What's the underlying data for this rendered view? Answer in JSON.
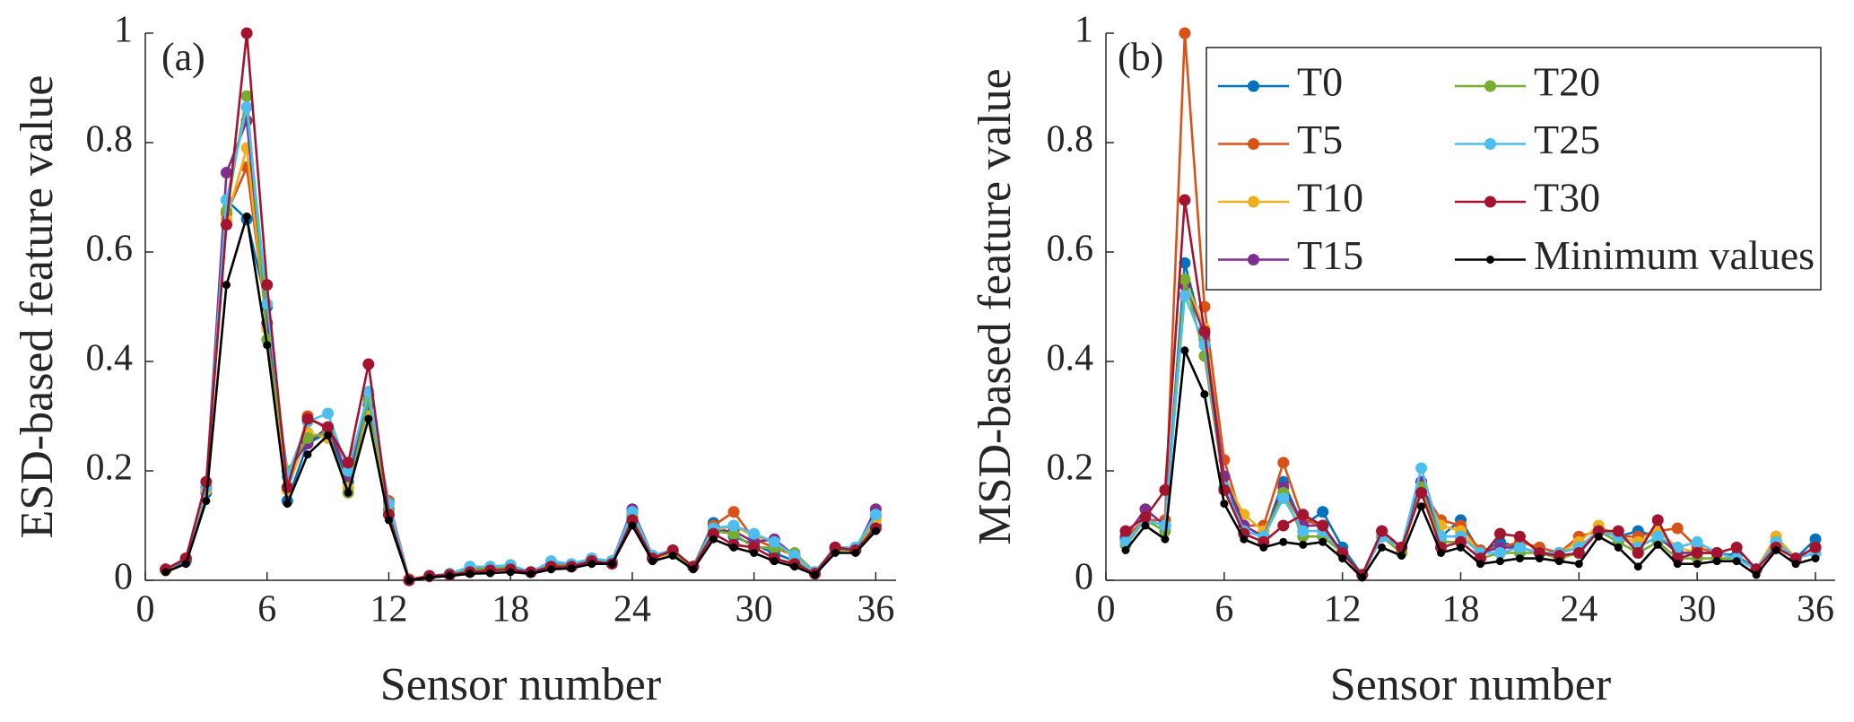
{
  "chart_data": [
    {
      "type": "line",
      "annotation": "(a)",
      "xlabel": "Sensor number",
      "ylabel": "ESD-based feature value",
      "x": [
        1,
        2,
        3,
        4,
        5,
        6,
        7,
        8,
        9,
        10,
        11,
        12,
        13,
        14,
        15,
        16,
        17,
        18,
        19,
        20,
        21,
        22,
        23,
        24,
        25,
        26,
        27,
        28,
        29,
        30,
        31,
        32,
        33,
        34,
        35,
        36
      ],
      "xlim": [
        0,
        37
      ],
      "ylim": [
        0,
        1
      ],
      "xticks": [
        0,
        6,
        12,
        18,
        24,
        30,
        36
      ],
      "yticks": [
        0,
        0.2,
        0.4,
        0.6,
        0.8,
        1
      ],
      "series": [
        {
          "color": "#0072BD",
          "values": [
            0.018,
            0.035,
            0.16,
            0.695,
            0.66,
            0.5,
            0.145,
            0.25,
            0.27,
            0.18,
            0.32,
            0.13,
            0.0,
            0.007,
            0.01,
            0.018,
            0.02,
            0.022,
            0.015,
            0.028,
            0.025,
            0.035,
            0.035,
            0.115,
            0.04,
            0.05,
            0.025,
            0.105,
            0.08,
            0.065,
            0.05,
            0.035,
            0.012,
            0.055,
            0.055,
            0.1
          ]
        },
        {
          "color": "#D95319",
          "values": [
            0.02,
            0.04,
            0.17,
            0.67,
            0.755,
            0.47,
            0.17,
            0.3,
            0.275,
            0.21,
            0.33,
            0.145,
            0.002,
            0.008,
            0.012,
            0.02,
            0.022,
            0.025,
            0.015,
            0.03,
            0.028,
            0.04,
            0.035,
            0.125,
            0.045,
            0.055,
            0.025,
            0.1,
            0.125,
            0.075,
            0.06,
            0.045,
            0.015,
            0.06,
            0.06,
            0.115
          ]
        },
        {
          "color": "#EDB120",
          "values": [
            0.018,
            0.04,
            0.165,
            0.66,
            0.79,
            0.46,
            0.165,
            0.27,
            0.26,
            0.17,
            0.3,
            0.12,
            0.0,
            0.007,
            0.01,
            0.02,
            0.02,
            0.025,
            0.015,
            0.03,
            0.025,
            0.035,
            0.035,
            0.12,
            0.04,
            0.05,
            0.025,
            0.09,
            0.1,
            0.08,
            0.07,
            0.04,
            0.015,
            0.055,
            0.055,
            0.11
          ]
        },
        {
          "color": "#7E2F8E",
          "values": [
            0.02,
            0.04,
            0.17,
            0.745,
            0.84,
            0.47,
            0.2,
            0.25,
            0.28,
            0.19,
            0.34,
            0.13,
            0.0,
            0.008,
            0.01,
            0.02,
            0.02,
            0.025,
            0.015,
            0.03,
            0.028,
            0.035,
            0.035,
            0.13,
            0.045,
            0.05,
            0.025,
            0.09,
            0.09,
            0.07,
            0.075,
            0.045,
            0.015,
            0.06,
            0.055,
            0.13
          ]
        },
        {
          "color": "#77AC30",
          "values": [
            0.02,
            0.04,
            0.17,
            0.675,
            0.885,
            0.44,
            0.2,
            0.26,
            0.27,
            0.16,
            0.33,
            0.13,
            0.0,
            0.008,
            0.01,
            0.02,
            0.02,
            0.025,
            0.015,
            0.03,
            0.025,
            0.035,
            0.035,
            0.12,
            0.045,
            0.05,
            0.025,
            0.09,
            0.085,
            0.06,
            0.06,
            0.05,
            0.015,
            0.055,
            0.055,
            0.12
          ]
        },
        {
          "color": "#4DBEEE",
          "values": [
            0.02,
            0.04,
            0.17,
            0.695,
            0.865,
            0.505,
            0.19,
            0.29,
            0.305,
            0.2,
            0.345,
            0.14,
            0.0,
            0.008,
            0.012,
            0.025,
            0.025,
            0.028,
            0.015,
            0.035,
            0.03,
            0.04,
            0.035,
            0.125,
            0.045,
            0.055,
            0.025,
            0.095,
            0.1,
            0.085,
            0.07,
            0.045,
            0.015,
            0.06,
            0.06,
            0.12
          ]
        },
        {
          "color": "#A2142F",
          "values": [
            0.02,
            0.04,
            0.18,
            0.65,
            1.0,
            0.54,
            0.17,
            0.295,
            0.28,
            0.215,
            0.395,
            0.12,
            0.0,
            0.008,
            0.01,
            0.015,
            0.018,
            0.02,
            0.015,
            0.025,
            0.025,
            0.035,
            0.03,
            0.11,
            0.04,
            0.055,
            0.025,
            0.085,
            0.065,
            0.06,
            0.04,
            0.03,
            0.012,
            0.06,
            0.055,
            0.095
          ]
        },
        {
          "color": "#000000",
          "values": [
            0.015,
            0.03,
            0.145,
            0.54,
            0.665,
            0.43,
            0.14,
            0.23,
            0.265,
            0.16,
            0.295,
            0.11,
            0.0,
            0.005,
            0.008,
            0.012,
            0.013,
            0.015,
            0.012,
            0.02,
            0.022,
            0.03,
            0.03,
            0.1,
            0.035,
            0.045,
            0.02,
            0.075,
            0.06,
            0.05,
            0.035,
            0.025,
            0.01,
            0.05,
            0.05,
            0.09
          ]
        }
      ]
    },
    {
      "type": "line",
      "annotation": "(b)",
      "xlabel": "Sensor number",
      "ylabel": "MSD-based feature value",
      "x": [
        1,
        2,
        3,
        4,
        5,
        6,
        7,
        8,
        9,
        10,
        11,
        12,
        13,
        14,
        15,
        16,
        17,
        18,
        19,
        20,
        21,
        22,
        23,
        24,
        25,
        26,
        27,
        28,
        29,
        30,
        31,
        32,
        33,
        34,
        35,
        36
      ],
      "xlim": [
        0,
        37
      ],
      "ylim": [
        0,
        1
      ],
      "xticks": [
        0,
        6,
        12,
        18,
        24,
        30,
        36
      ],
      "yticks": [
        0,
        0.2,
        0.4,
        0.6,
        0.8,
        1
      ],
      "legend": "northeast",
      "series": [
        {
          "name": "T0",
          "color": "#0072BD",
          "values": [
            0.075,
            0.11,
            0.1,
            0.58,
            0.44,
            0.19,
            0.09,
            0.08,
            0.18,
            0.1,
            0.125,
            0.06,
            0.01,
            0.08,
            0.06,
            0.18,
            0.08,
            0.11,
            0.05,
            0.07,
            0.06,
            0.05,
            0.05,
            0.06,
            0.09,
            0.08,
            0.09,
            0.08,
            0.05,
            0.05,
            0.05,
            0.045,
            0.02,
            0.07,
            0.04,
            0.075
          ]
        },
        {
          "name": "T5",
          "color": "#D95319",
          "values": [
            0.08,
            0.11,
            0.11,
            1.0,
            0.5,
            0.22,
            0.1,
            0.1,
            0.215,
            0.11,
            0.1,
            0.05,
            0.01,
            0.08,
            0.06,
            0.17,
            0.11,
            0.1,
            0.055,
            0.06,
            0.07,
            0.06,
            0.05,
            0.08,
            0.09,
            0.08,
            0.08,
            0.09,
            0.095,
            0.06,
            0.05,
            0.04,
            0.02,
            0.08,
            0.04,
            0.06
          ]
        },
        {
          "name": "T10",
          "color": "#EDB120",
          "values": [
            0.07,
            0.11,
            0.1,
            0.55,
            0.46,
            0.19,
            0.12,
            0.09,
            0.16,
            0.1,
            0.1,
            0.05,
            0.01,
            0.08,
            0.06,
            0.17,
            0.1,
            0.09,
            0.05,
            0.06,
            0.06,
            0.05,
            0.05,
            0.07,
            0.1,
            0.08,
            0.07,
            0.09,
            0.06,
            0.05,
            0.05,
            0.04,
            0.02,
            0.08,
            0.04,
            0.06
          ]
        },
        {
          "name": "T15",
          "color": "#7E2F8E",
          "values": [
            0.08,
            0.13,
            0.1,
            0.54,
            0.45,
            0.19,
            0.1,
            0.08,
            0.17,
            0.1,
            0.1,
            0.05,
            0.01,
            0.09,
            0.06,
            0.18,
            0.08,
            0.08,
            0.05,
            0.06,
            0.06,
            0.05,
            0.05,
            0.06,
            0.09,
            0.08,
            0.06,
            0.08,
            0.05,
            0.05,
            0.05,
            0.04,
            0.02,
            0.07,
            0.04,
            0.06
          ]
        },
        {
          "name": "T20",
          "color": "#77AC30",
          "values": [
            0.065,
            0.11,
            0.09,
            0.55,
            0.41,
            0.17,
            0.09,
            0.08,
            0.16,
            0.08,
            0.08,
            0.05,
            0.01,
            0.08,
            0.05,
            0.17,
            0.07,
            0.07,
            0.04,
            0.05,
            0.05,
            0.05,
            0.04,
            0.05,
            0.09,
            0.07,
            0.05,
            0.07,
            0.04,
            0.04,
            0.04,
            0.04,
            0.02,
            0.07,
            0.04,
            0.05
          ]
        },
        {
          "name": "T25",
          "color": "#4DBEEE",
          "values": [
            0.07,
            0.11,
            0.1,
            0.52,
            0.43,
            0.17,
            0.09,
            0.08,
            0.15,
            0.09,
            0.09,
            0.05,
            0.01,
            0.08,
            0.06,
            0.205,
            0.08,
            0.08,
            0.05,
            0.05,
            0.06,
            0.05,
            0.05,
            0.06,
            0.09,
            0.08,
            0.06,
            0.08,
            0.06,
            0.07,
            0.05,
            0.04,
            0.02,
            0.07,
            0.04,
            0.05
          ]
        },
        {
          "name": "T30",
          "color": "#A2142F",
          "values": [
            0.09,
            0.115,
            0.165,
            0.695,
            0.455,
            0.165,
            0.085,
            0.07,
            0.1,
            0.12,
            0.1,
            0.05,
            0.01,
            0.09,
            0.06,
            0.16,
            0.06,
            0.07,
            0.04,
            0.085,
            0.08,
            0.05,
            0.045,
            0.05,
            0.09,
            0.09,
            0.05,
            0.11,
            0.04,
            0.05,
            0.05,
            0.06,
            0.02,
            0.06,
            0.04,
            0.06
          ]
        },
        {
          "name": "Minimum values",
          "color": "#000000",
          "values": [
            0.055,
            0.1,
            0.075,
            0.42,
            0.34,
            0.14,
            0.075,
            0.06,
            0.07,
            0.065,
            0.07,
            0.04,
            0.005,
            0.06,
            0.045,
            0.135,
            0.05,
            0.06,
            0.03,
            0.035,
            0.04,
            0.04,
            0.035,
            0.03,
            0.08,
            0.06,
            0.025,
            0.065,
            0.03,
            0.03,
            0.035,
            0.035,
            0.01,
            0.055,
            0.03,
            0.04
          ]
        }
      ]
    }
  ]
}
